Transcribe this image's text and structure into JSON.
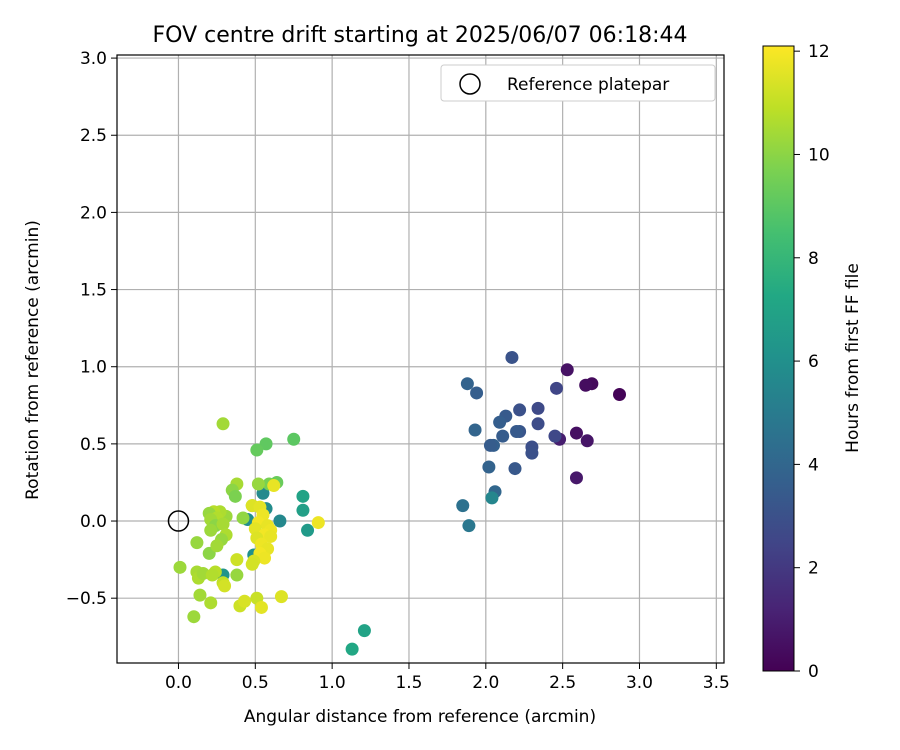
{
  "chart_data": {
    "type": "scatter",
    "title": "FOV centre drift starting at 2025/06/07 06:18:44",
    "xlabel": "Angular distance from reference (arcmin)",
    "ylabel": "Rotation from reference (arcmin)",
    "xlim": [
      -0.4,
      3.55
    ],
    "ylim": [
      -0.92,
      3.02
    ],
    "xticks": [
      0.0,
      0.5,
      1.0,
      1.5,
      2.0,
      2.5,
      3.0,
      3.5
    ],
    "xtick_labels": [
      "0.0",
      "0.5",
      "1.0",
      "1.5",
      "2.0",
      "2.5",
      "3.0",
      "3.5"
    ],
    "yticks": [
      -0.5,
      0.0,
      0.5,
      1.0,
      1.5,
      2.0,
      2.5,
      3.0
    ],
    "ytick_labels": [
      "−0.5",
      "0.0",
      "0.5",
      "1.0",
      "1.5",
      "2.0",
      "2.5",
      "3.0"
    ],
    "grid": true,
    "legend": {
      "position": "top-right",
      "entries": [
        "Reference platepar"
      ]
    },
    "reference_point": {
      "x": 0.0,
      "y": 0.0
    },
    "colorbar": {
      "label": "Hours from first FF file",
      "colormap": "viridis",
      "range": [
        0,
        12.1
      ],
      "ticks": [
        0,
        2,
        4,
        6,
        8,
        10,
        12
      ],
      "tick_labels": [
        "0",
        "2",
        "4",
        "6",
        "8",
        "10",
        "12"
      ]
    },
    "points": [
      {
        "x": 2.87,
        "y": 0.82,
        "t": 0.1
      },
      {
        "x": 2.69,
        "y": 0.89,
        "t": 0.3
      },
      {
        "x": 2.65,
        "y": 0.88,
        "t": 0.4
      },
      {
        "x": 2.53,
        "y": 0.98,
        "t": 0.6
      },
      {
        "x": 2.59,
        "y": 0.57,
        "t": 0.5
      },
      {
        "x": 2.66,
        "y": 0.52,
        "t": 0.7
      },
      {
        "x": 2.59,
        "y": 0.28,
        "t": 0.8
      },
      {
        "x": 2.48,
        "y": 0.53,
        "t": 1.0
      },
      {
        "x": 2.46,
        "y": 0.86,
        "t": 2.5
      },
      {
        "x": 2.45,
        "y": 0.55,
        "t": 2.6
      },
      {
        "x": 2.34,
        "y": 0.73,
        "t": 2.7
      },
      {
        "x": 2.34,
        "y": 0.63,
        "t": 2.8
      },
      {
        "x": 2.3,
        "y": 0.48,
        "t": 2.9
      },
      {
        "x": 2.3,
        "y": 0.44,
        "t": 3.0
      },
      {
        "x": 2.17,
        "y": 1.06,
        "t": 3.1
      },
      {
        "x": 2.22,
        "y": 0.72,
        "t": 3.0
      },
      {
        "x": 2.22,
        "y": 0.58,
        "t": 3.2
      },
      {
        "x": 2.2,
        "y": 0.58,
        "t": 3.4
      },
      {
        "x": 2.13,
        "y": 0.68,
        "t": 3.4
      },
      {
        "x": 2.11,
        "y": 0.55,
        "t": 3.5
      },
      {
        "x": 2.09,
        "y": 0.64,
        "t": 3.6
      },
      {
        "x": 2.19,
        "y": 0.34,
        "t": 3.3
      },
      {
        "x": 2.05,
        "y": 0.49,
        "t": 3.7
      },
      {
        "x": 2.03,
        "y": 0.49,
        "t": 3.5
      },
      {
        "x": 2.02,
        "y": 0.35,
        "t": 3.8
      },
      {
        "x": 1.94,
        "y": 0.83,
        "t": 3.6
      },
      {
        "x": 1.88,
        "y": 0.89,
        "t": 3.8
      },
      {
        "x": 1.93,
        "y": 0.59,
        "t": 3.9
      },
      {
        "x": 2.06,
        "y": 0.19,
        "t": 4.0
      },
      {
        "x": 2.04,
        "y": 0.15,
        "t": 5.5
      },
      {
        "x": 1.85,
        "y": 0.1,
        "t": 4.5
      },
      {
        "x": 1.89,
        "y": -0.03,
        "t": 4.8
      },
      {
        "x": 1.21,
        "y": -0.71,
        "t": 7.0
      },
      {
        "x": 1.13,
        "y": -0.83,
        "t": 7.2
      },
      {
        "x": 0.81,
        "y": 0.16,
        "t": 7.0
      },
      {
        "x": 0.81,
        "y": 0.07,
        "t": 6.8
      },
      {
        "x": 0.84,
        "y": -0.06,
        "t": 6.5
      },
      {
        "x": 0.66,
        "y": 0.0,
        "t": 5.6
      },
      {
        "x": 0.55,
        "y": 0.18,
        "t": 5.7
      },
      {
        "x": 0.57,
        "y": 0.08,
        "t": 5.8
      },
      {
        "x": 0.45,
        "y": 0.01,
        "t": 5.9
      },
      {
        "x": 0.49,
        "y": -0.22,
        "t": 6.0
      },
      {
        "x": 0.29,
        "y": -0.35,
        "t": 6.2
      },
      {
        "x": 0.75,
        "y": 0.53,
        "t": 9.0
      },
      {
        "x": 0.57,
        "y": 0.5,
        "t": 9.1
      },
      {
        "x": 0.51,
        "y": 0.46,
        "t": 9.2
      },
      {
        "x": 0.64,
        "y": 0.25,
        "t": 9.3
      },
      {
        "x": 0.59,
        "y": 0.24,
        "t": 9.6
      },
      {
        "x": 0.29,
        "y": 0.63,
        "t": 10.4
      },
      {
        "x": 0.52,
        "y": 0.24,
        "t": 10.2
      },
      {
        "x": 0.38,
        "y": 0.24,
        "t": 10.5
      },
      {
        "x": 0.35,
        "y": 0.2,
        "t": 10.0
      },
      {
        "x": 0.37,
        "y": 0.16,
        "t": 9.7
      },
      {
        "x": 0.48,
        "y": 0.1,
        "t": 10.0
      },
      {
        "x": 0.42,
        "y": 0.02,
        "t": 10.1
      },
      {
        "x": 0.31,
        "y": 0.03,
        "t": 10.3
      },
      {
        "x": 0.27,
        "y": 0.06,
        "t": 10.6
      },
      {
        "x": 0.23,
        "y": 0.06,
        "t": 10.8
      },
      {
        "x": 0.2,
        "y": 0.05,
        "t": 10.2
      },
      {
        "x": 0.25,
        "y": 0.02,
        "t": 10.7
      },
      {
        "x": 0.21,
        "y": 0.01,
        "t": 10.4
      },
      {
        "x": 0.24,
        "y": -0.03,
        "t": 10.0
      },
      {
        "x": 0.29,
        "y": -0.02,
        "t": 10.5
      },
      {
        "x": 0.21,
        "y": -0.06,
        "t": 10.3
      },
      {
        "x": 0.31,
        "y": -0.09,
        "t": 10.6
      },
      {
        "x": 0.28,
        "y": -0.12,
        "t": 10.2
      },
      {
        "x": 0.12,
        "y": -0.14,
        "t": 10.2
      },
      {
        "x": 0.2,
        "y": -0.21,
        "t": 10.0
      },
      {
        "x": 0.25,
        "y": -0.16,
        "t": 10.4
      },
      {
        "x": 0.01,
        "y": -0.3,
        "t": 10.3
      },
      {
        "x": 0.12,
        "y": -0.33,
        "t": 10.5
      },
      {
        "x": 0.13,
        "y": -0.37,
        "t": 10.6
      },
      {
        "x": 0.16,
        "y": -0.34,
        "t": 10.4
      },
      {
        "x": 0.24,
        "y": -0.33,
        "t": 10.8
      },
      {
        "x": 0.22,
        "y": -0.35,
        "t": 10.7
      },
      {
        "x": 0.29,
        "y": -0.4,
        "t": 11.0
      },
      {
        "x": 0.3,
        "y": -0.42,
        "t": 11.3
      },
      {
        "x": 0.38,
        "y": -0.35,
        "t": 10.2
      },
      {
        "x": 0.14,
        "y": -0.48,
        "t": 10.4
      },
      {
        "x": 0.21,
        "y": -0.53,
        "t": 10.6
      },
      {
        "x": 0.1,
        "y": -0.62,
        "t": 10.3
      },
      {
        "x": 0.4,
        "y": -0.55,
        "t": 11.2
      },
      {
        "x": 0.43,
        "y": -0.52,
        "t": 11.4
      },
      {
        "x": 0.51,
        "y": -0.5,
        "t": 11.1
      },
      {
        "x": 0.54,
        "y": -0.56,
        "t": 11.6
      },
      {
        "x": 0.67,
        "y": -0.49,
        "t": 11.5
      },
      {
        "x": 0.91,
        "y": -0.01,
        "t": 11.8
      },
      {
        "x": 0.62,
        "y": 0.23,
        "t": 11.7
      },
      {
        "x": 0.48,
        "y": 0.1,
        "t": 11.5
      },
      {
        "x": 0.53,
        "y": 0.09,
        "t": 11.6
      },
      {
        "x": 0.55,
        "y": 0.04,
        "t": 11.8
      },
      {
        "x": 0.52,
        "y": -0.01,
        "t": 11.9
      },
      {
        "x": 0.58,
        "y": -0.03,
        "t": 11.7
      },
      {
        "x": 0.6,
        "y": -0.06,
        "t": 11.8
      },
      {
        "x": 0.5,
        "y": -0.05,
        "t": 11.6
      },
      {
        "x": 0.56,
        "y": -0.09,
        "t": 11.9
      },
      {
        "x": 0.6,
        "y": -0.1,
        "t": 11.7
      },
      {
        "x": 0.51,
        "y": -0.11,
        "t": 11.5
      },
      {
        "x": 0.54,
        "y": -0.15,
        "t": 11.8
      },
      {
        "x": 0.58,
        "y": -0.18,
        "t": 11.7
      },
      {
        "x": 0.53,
        "y": -0.21,
        "t": 11.9
      },
      {
        "x": 0.56,
        "y": -0.24,
        "t": 11.8
      },
      {
        "x": 0.49,
        "y": -0.26,
        "t": 11.4
      },
      {
        "x": 0.48,
        "y": -0.28,
        "t": 11.3
      },
      {
        "x": 0.38,
        "y": -0.25,
        "t": 11.2
      }
    ]
  }
}
